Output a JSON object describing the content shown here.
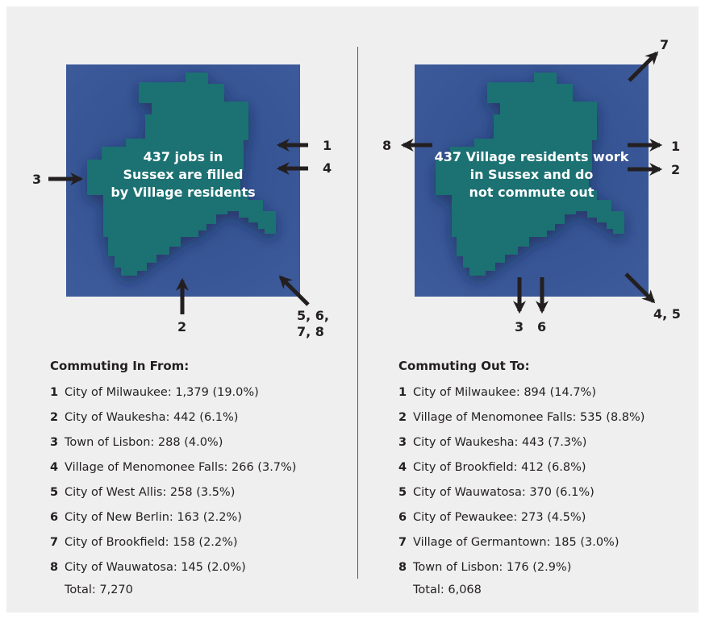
{
  "left": {
    "caption": [
      "437 jobs in",
      "Sussex are filled",
      "by Village residents"
    ],
    "arrow_labels": {
      "a1": "1",
      "a4": "4",
      "a3": "3",
      "a2": "2",
      "a5678": [
        "5, 6,",
        "7, 8"
      ]
    },
    "heading": "Commuting In From:",
    "items": [
      {
        "num": "1",
        "text": "City of Milwaukee: 1,379 (19.0%)"
      },
      {
        "num": "2",
        "text": "City of Waukesha: 442 (6.1%)"
      },
      {
        "num": "3",
        "text": "Town of Lisbon: 288 (4.0%)"
      },
      {
        "num": "4",
        "text": "Village of Menomonee Falls: 266 (3.7%)"
      },
      {
        "num": "5",
        "text": "City of West Allis: 258 (3.5%)"
      },
      {
        "num": "6",
        "text": "City of New Berlin: 163 (2.2%)"
      },
      {
        "num": "7",
        "text": "City of Brookfield: 158 (2.2%)"
      },
      {
        "num": "8",
        "text": "City of Wauwatosa: 145 (2.0%)"
      }
    ],
    "total": "Total: 7,270"
  },
  "right": {
    "caption": [
      "437 Village residents work",
      "in Sussex and do",
      "not commute out"
    ],
    "arrow_labels": {
      "a7": "7",
      "a8": "8",
      "a1": "1",
      "a2": "2",
      "a3": "3",
      "a6": "6",
      "a45": "4, 5"
    },
    "heading": "Commuting Out To:",
    "items": [
      {
        "num": "1",
        "text": "City of Milwaukee: 894 (14.7%)"
      },
      {
        "num": "2",
        "text": "Village of Menomonee Falls: 535 (8.8%)"
      },
      {
        "num": "3",
        "text": "City of Waukesha: 443 (7.3%)"
      },
      {
        "num": "4",
        "text": "City of Brookfield: 412 (6.8%)"
      },
      {
        "num": "5",
        "text": "City of Wauwatosa: 370 (6.1%)"
      },
      {
        "num": "6",
        "text": "City of Pewaukee: 273 (4.5%)"
      },
      {
        "num": "7",
        "text": "Village of Germantown: 185 (3.0%)"
      },
      {
        "num": "8",
        "text": "Town of Lisbon: 176 (2.9%)"
      }
    ],
    "total": "Total: 6,068"
  },
  "colors": {
    "panel": "#efefef",
    "map_background": "#3b5898",
    "village_shape": "#1d7172",
    "arrow": "#231f20",
    "divider": "#3f5a93"
  }
}
